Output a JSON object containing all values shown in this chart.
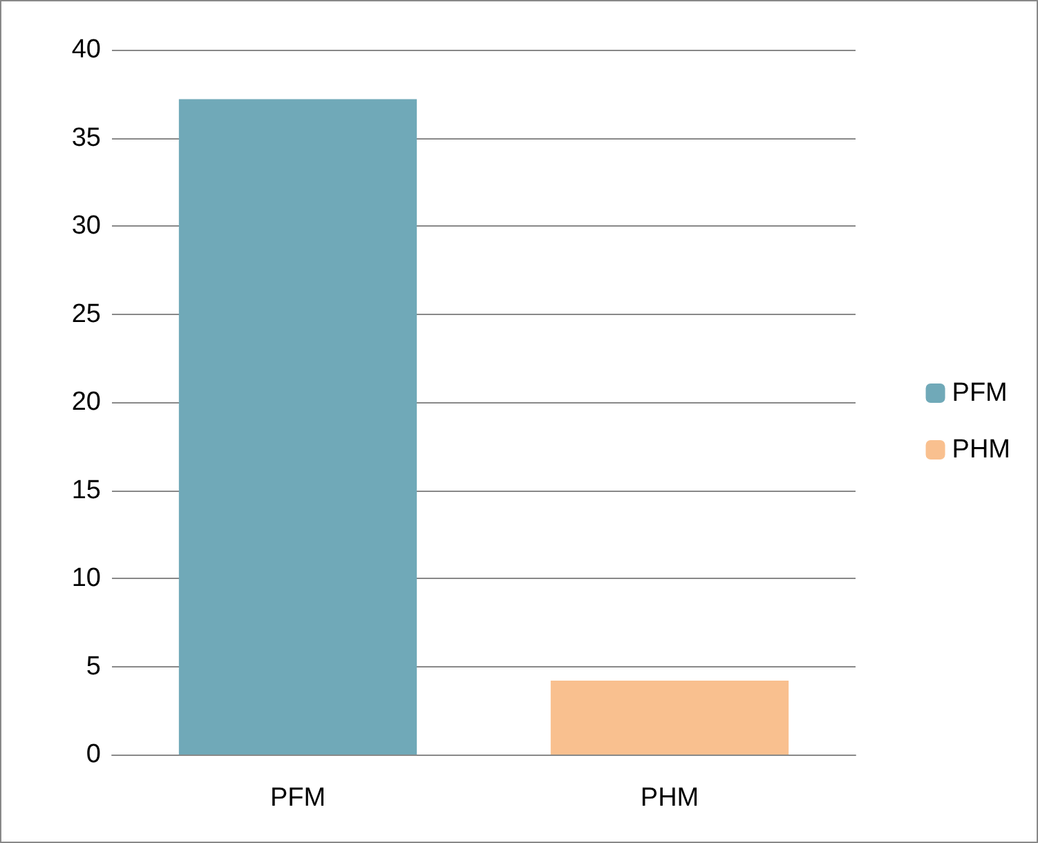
{
  "chart_data": {
    "type": "bar",
    "categories": [
      "PFM",
      "PHM"
    ],
    "series": [
      {
        "name": "PFM",
        "color": "#70a9b8",
        "values": [
          37.2,
          null
        ]
      },
      {
        "name": "PHM",
        "color": "#f9c08f",
        "values": [
          null,
          4.2
        ]
      }
    ],
    "stacked": true,
    "ylim": [
      0,
      40
    ],
    "yticks": [
      0,
      5,
      10,
      15,
      20,
      25,
      30,
      35,
      40
    ],
    "grid": "y",
    "legend": "right"
  }
}
